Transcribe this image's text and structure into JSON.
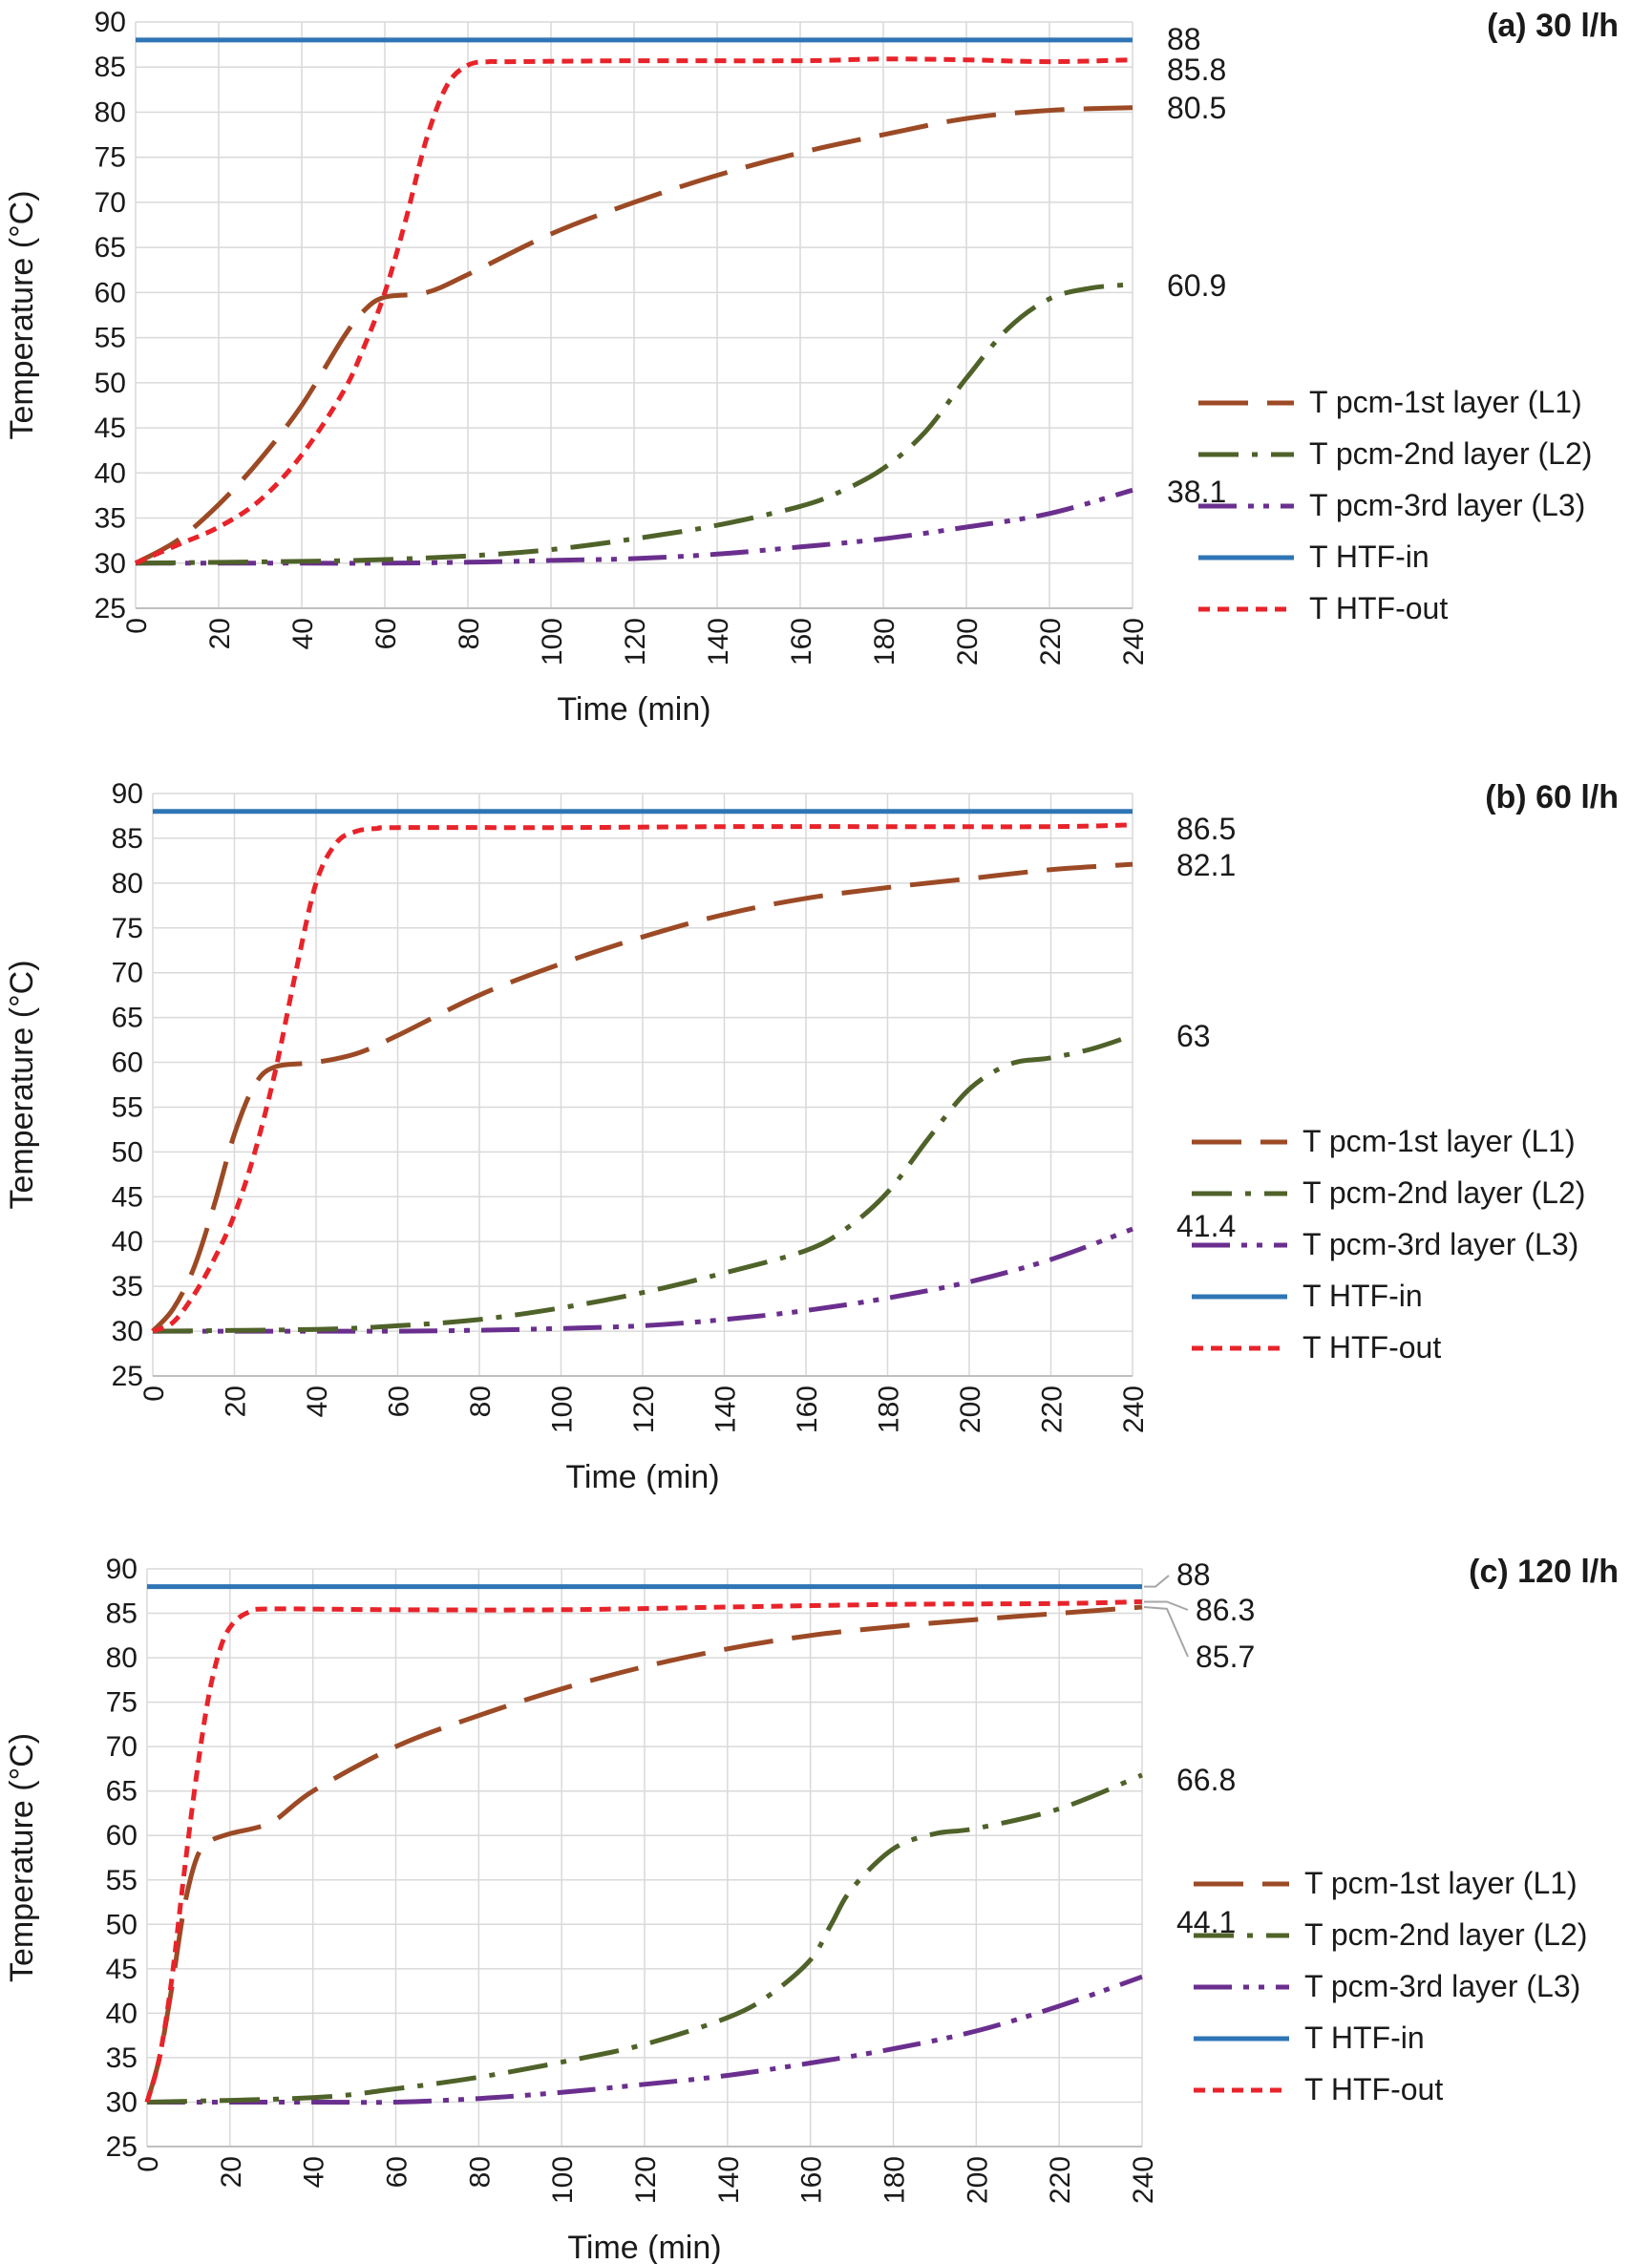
{
  "figure": {
    "charts": 3
  },
  "series_styles": {
    "L1": {
      "color": "#9c4a25",
      "dash": "52 20",
      "width": 5
    },
    "L2": {
      "color": "#4f6229",
      "dash": "42 14 6 14",
      "width": 5
    },
    "L3": {
      "color": "#6a2f8e",
      "dash": "40 12 6 10 6 12",
      "width": 5
    },
    "HTFin": {
      "color": "#2f75b5",
      "dash": "",
      "width": 5
    },
    "HTFout": {
      "color": "#e8232a",
      "dash": "12 8",
      "width": 5
    }
  },
  "chart_data": [
    {
      "type": "line",
      "title": "(a) 30 l/h",
      "xlabel": "Time (min)",
      "ylabel": "Temperature (°C)",
      "xlim": [
        0,
        240
      ],
      "ylim": [
        25,
        90
      ],
      "xticks": [
        0,
        20,
        40,
        60,
        80,
        100,
        120,
        140,
        160,
        180,
        200,
        220,
        240
      ],
      "yticks": [
        25,
        30,
        35,
        40,
        45,
        50,
        55,
        60,
        65,
        70,
        75,
        80,
        85,
        90
      ],
      "grid": true,
      "legend_position": "right",
      "series": [
        {
          "key": "L1",
          "name": "T pcm-1st layer (L1)",
          "x": [
            0,
            10,
            20,
            30,
            40,
            50,
            55,
            60,
            70,
            80,
            100,
            120,
            140,
            160,
            180,
            200,
            220,
            240
          ],
          "y": [
            30,
            32.5,
            36.5,
            41.5,
            47.5,
            55,
            58,
            59.5,
            60,
            62,
            66.5,
            70,
            73,
            75.5,
            77.5,
            79.3,
            80.2,
            80.5
          ]
        },
        {
          "key": "L2",
          "name": "T pcm-2nd layer (L2)",
          "x": [
            0,
            40,
            60,
            80,
            100,
            120,
            140,
            160,
            170,
            180,
            190,
            200,
            210,
            220,
            230,
            240
          ],
          "y": [
            30,
            30.2,
            30.4,
            30.8,
            31.5,
            32.7,
            34.2,
            36.3,
            38,
            40.5,
            44.5,
            50.5,
            56,
            59.3,
            60.5,
            60.9
          ]
        },
        {
          "key": "L3",
          "name": "T pcm-3rd layer (L3)",
          "x": [
            0,
            40,
            60,
            80,
            100,
            120,
            140,
            160,
            180,
            200,
            220,
            240
          ],
          "y": [
            30,
            30,
            30,
            30.1,
            30.3,
            30.5,
            31,
            31.8,
            32.7,
            34,
            35.5,
            38.1
          ]
        },
        {
          "key": "HTFin",
          "name": "T HTF-in",
          "x": [
            0,
            240
          ],
          "y": [
            88,
            88
          ]
        },
        {
          "key": "HTFout",
          "name": "T HTF-out",
          "x": [
            0,
            10,
            20,
            30,
            40,
            50,
            55,
            60,
            65,
            70,
            75,
            80,
            85,
            90,
            120,
            160,
            180,
            200,
            220,
            240
          ],
          "y": [
            30,
            32,
            34,
            37,
            42,
            49,
            54,
            60,
            68,
            77,
            83,
            85.2,
            85.6,
            85.6,
            85.7,
            85.7,
            85.9,
            85.8,
            85.6,
            85.8
          ]
        }
      ],
      "end_labels": [
        "88",
        "85.8",
        "80.5",
        "60.9",
        "38.1"
      ]
    },
    {
      "type": "line",
      "title": "(b) 60 l/h",
      "xlabel": "Time (min)",
      "ylabel": "Temperature (°C)",
      "xlim": [
        0,
        240
      ],
      "ylim": [
        25,
        90
      ],
      "xticks": [
        0,
        20,
        40,
        60,
        80,
        100,
        120,
        140,
        160,
        180,
        200,
        220,
        240
      ],
      "yticks": [
        25,
        30,
        35,
        40,
        45,
        50,
        55,
        60,
        65,
        70,
        75,
        80,
        85,
        90
      ],
      "grid": true,
      "legend_position": "right",
      "series": [
        {
          "key": "L1",
          "name": "T pcm-1st layer (L1)",
          "x": [
            0,
            5,
            10,
            15,
            20,
            25,
            30,
            40,
            50,
            60,
            80,
            100,
            120,
            140,
            160,
            180,
            200,
            220,
            240
          ],
          "y": [
            30,
            32.5,
            37,
            44,
            52,
            57.5,
            59.5,
            60,
            61,
            63,
            67.5,
            71,
            74,
            76.5,
            78.3,
            79.5,
            80.5,
            81.5,
            82.1
          ]
        },
        {
          "key": "L2",
          "name": "T pcm-2nd layer (L2)",
          "x": [
            0,
            40,
            60,
            80,
            100,
            120,
            140,
            160,
            170,
            180,
            190,
            200,
            210,
            220,
            230,
            240
          ],
          "y": [
            30,
            30.2,
            30.6,
            31.3,
            32.6,
            34.3,
            36.5,
            39,
            41.5,
            45.5,
            51.5,
            57,
            59.8,
            60.5,
            61.5,
            63
          ]
        },
        {
          "key": "L3",
          "name": "T pcm-3rd layer (L3)",
          "x": [
            0,
            40,
            60,
            80,
            100,
            120,
            140,
            160,
            180,
            200,
            220,
            240
          ],
          "y": [
            30,
            30,
            30,
            30.1,
            30.3,
            30.6,
            31.3,
            32.3,
            33.7,
            35.5,
            38,
            41.4
          ]
        },
        {
          "key": "HTFin",
          "name": "T HTF-in",
          "x": [
            0,
            240
          ],
          "y": [
            88,
            88
          ]
        },
        {
          "key": "HTFout",
          "name": "T HTF-out",
          "x": [
            0,
            5,
            10,
            15,
            20,
            25,
            30,
            35,
            40,
            45,
            50,
            55,
            60,
            100,
            140,
            180,
            220,
            240
          ],
          "y": [
            30,
            31,
            34,
            38,
            43,
            50,
            59,
            70,
            80,
            84.5,
            85.8,
            86.1,
            86.2,
            86.2,
            86.3,
            86.3,
            86.3,
            86.5
          ]
        }
      ],
      "end_labels": [
        "86.5",
        "82.1",
        "63",
        "41.4"
      ]
    },
    {
      "type": "line",
      "title": "(c) 120 l/h",
      "xlabel": "Time (min)",
      "ylabel": "Temperature (°C)",
      "xlim": [
        0,
        240
      ],
      "ylim": [
        25,
        90
      ],
      "xticks": [
        0,
        20,
        40,
        60,
        80,
        100,
        120,
        140,
        160,
        180,
        200,
        220,
        240
      ],
      "yticks": [
        25,
        30,
        35,
        40,
        45,
        50,
        55,
        60,
        65,
        70,
        75,
        80,
        85,
        90
      ],
      "grid": true,
      "legend_position": "right",
      "series": [
        {
          "key": "L1",
          "name": "T pcm-1st layer (L1)",
          "x": [
            0,
            3,
            6,
            9,
            12,
            15,
            20,
            30,
            40,
            60,
            80,
            100,
            120,
            140,
            160,
            180,
            200,
            220,
            240
          ],
          "y": [
            30,
            35,
            43,
            52,
            57.5,
            59.3,
            60.2,
            61.5,
            65,
            70,
            73.5,
            76.5,
            79,
            81,
            82.5,
            83.5,
            84.3,
            85,
            85.7
          ]
        },
        {
          "key": "L2",
          "name": "T pcm-2nd layer (L2)",
          "x": [
            0,
            40,
            60,
            80,
            100,
            120,
            140,
            150,
            160,
            165,
            170,
            180,
            190,
            200,
            220,
            240
          ],
          "y": [
            30,
            30.5,
            31.5,
            32.8,
            34.5,
            36.5,
            39.5,
            42,
            46,
            50,
            54,
            58.5,
            60.2,
            60.8,
            63,
            66.8
          ]
        },
        {
          "key": "L3",
          "name": "T pcm-3rd layer (L3)",
          "x": [
            0,
            40,
            60,
            80,
            100,
            120,
            140,
            160,
            180,
            200,
            220,
            240
          ],
          "y": [
            30,
            30,
            30,
            30.4,
            31.1,
            32,
            33,
            34.4,
            36,
            38,
            40.8,
            44.1
          ]
        },
        {
          "key": "HTFin",
          "name": "T HTF-in",
          "x": [
            0,
            240
          ],
          "y": [
            88,
            88
          ]
        },
        {
          "key": "HTFout",
          "name": "T HTF-out",
          "x": [
            0,
            3,
            6,
            9,
            12,
            15,
            18,
            21,
            25,
            30,
            60,
            100,
            140,
            180,
            220,
            240
          ],
          "y": [
            30,
            35,
            44,
            56,
            67,
            76,
            81.5,
            84,
            85.2,
            85.5,
            85.4,
            85.4,
            85.7,
            86,
            86.1,
            86.3
          ]
        }
      ],
      "end_labels": [
        "88",
        "86.3",
        "85.7",
        "66.8",
        "44.1"
      ]
    }
  ]
}
